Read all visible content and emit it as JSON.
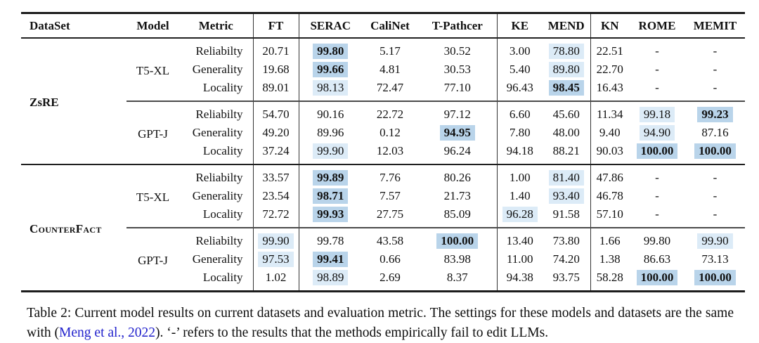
{
  "table": {
    "columns": [
      "DataSet",
      "Model",
      "Metric",
      "FT",
      "SERAC",
      "CaliNet",
      "T-Pathcer",
      "KE",
      "MEND",
      "KN",
      "ROME",
      "MEMIT"
    ],
    "highlight_colors": {
      "best": "#b9d4ea",
      "good": "#dcebf7"
    },
    "groups": [
      {
        "dataset": "ZsRE",
        "small_caps": false,
        "blocks": [
          {
            "model": "T5-XL",
            "rows": [
              {
                "metric": "Reliabilty",
                "cells": [
                  {
                    "v": "20.71"
                  },
                  {
                    "v": "99.80",
                    "hl": "best"
                  },
                  {
                    "v": "5.17"
                  },
                  {
                    "v": "30.52"
                  },
                  {
                    "v": "3.00"
                  },
                  {
                    "v": "78.80",
                    "hl": "good"
                  },
                  {
                    "v": "22.51"
                  },
                  {
                    "v": "-"
                  },
                  {
                    "v": "-"
                  }
                ]
              },
              {
                "metric": "Generality",
                "cells": [
                  {
                    "v": "19.68"
                  },
                  {
                    "v": "99.66",
                    "hl": "best"
                  },
                  {
                    "v": "4.81"
                  },
                  {
                    "v": "30.53"
                  },
                  {
                    "v": "5.40"
                  },
                  {
                    "v": "89.80",
                    "hl": "good"
                  },
                  {
                    "v": "22.70"
                  },
                  {
                    "v": "-"
                  },
                  {
                    "v": "-"
                  }
                ]
              },
              {
                "metric": "Locality",
                "cells": [
                  {
                    "v": "89.01"
                  },
                  {
                    "v": "98.13",
                    "hl": "good"
                  },
                  {
                    "v": "72.47"
                  },
                  {
                    "v": "77.10"
                  },
                  {
                    "v": "96.43"
                  },
                  {
                    "v": "98.45",
                    "hl": "best"
                  },
                  {
                    "v": "16.43"
                  },
                  {
                    "v": "-"
                  },
                  {
                    "v": "-"
                  }
                ]
              }
            ]
          },
          {
            "model": "GPT-J",
            "rows": [
              {
                "metric": "Reliabilty",
                "cells": [
                  {
                    "v": "54.70"
                  },
                  {
                    "v": "90.16"
                  },
                  {
                    "v": "22.72"
                  },
                  {
                    "v": "97.12"
                  },
                  {
                    "v": "6.60"
                  },
                  {
                    "v": "45.60"
                  },
                  {
                    "v": "11.34"
                  },
                  {
                    "v": "99.18",
                    "hl": "good"
                  },
                  {
                    "v": "99.23",
                    "hl": "best"
                  }
                ]
              },
              {
                "metric": "Generality",
                "cells": [
                  {
                    "v": "49.20"
                  },
                  {
                    "v": "89.96"
                  },
                  {
                    "v": "0.12"
                  },
                  {
                    "v": "94.95",
                    "hl": "best"
                  },
                  {
                    "v": "7.80"
                  },
                  {
                    "v": "48.00"
                  },
                  {
                    "v": "9.40"
                  },
                  {
                    "v": "94.90",
                    "hl": "good"
                  },
                  {
                    "v": "87.16"
                  }
                ]
              },
              {
                "metric": "Locality",
                "cells": [
                  {
                    "v": "37.24"
                  },
                  {
                    "v": "99.90",
                    "hl": "good"
                  },
                  {
                    "v": "12.03"
                  },
                  {
                    "v": "96.24"
                  },
                  {
                    "v": "94.18"
                  },
                  {
                    "v": "88.21"
                  },
                  {
                    "v": "90.03"
                  },
                  {
                    "v": "100.00",
                    "hl": "best"
                  },
                  {
                    "v": "100.00",
                    "hl": "best"
                  }
                ]
              }
            ]
          }
        ]
      },
      {
        "dataset": "CounterFact",
        "small_caps": true,
        "blocks": [
          {
            "model": "T5-XL",
            "rows": [
              {
                "metric": "Reliabilty",
                "cells": [
                  {
                    "v": "33.57"
                  },
                  {
                    "v": "99.89",
                    "hl": "best"
                  },
                  {
                    "v": "7.76"
                  },
                  {
                    "v": "80.26"
                  },
                  {
                    "v": "1.00"
                  },
                  {
                    "v": "81.40",
                    "hl": "good"
                  },
                  {
                    "v": "47.86"
                  },
                  {
                    "v": "-"
                  },
                  {
                    "v": "-"
                  }
                ]
              },
              {
                "metric": "Generality",
                "cells": [
                  {
                    "v": "23.54"
                  },
                  {
                    "v": "98.71",
                    "hl": "best"
                  },
                  {
                    "v": "7.57"
                  },
                  {
                    "v": "21.73"
                  },
                  {
                    "v": "1.40"
                  },
                  {
                    "v": "93.40",
                    "hl": "good"
                  },
                  {
                    "v": "46.78"
                  },
                  {
                    "v": "-"
                  },
                  {
                    "v": "-"
                  }
                ]
              },
              {
                "metric": "Locality",
                "cells": [
                  {
                    "v": "72.72"
                  },
                  {
                    "v": "99.93",
                    "hl": "best"
                  },
                  {
                    "v": "27.75"
                  },
                  {
                    "v": "85.09"
                  },
                  {
                    "v": "96.28",
                    "hl": "good"
                  },
                  {
                    "v": "91.58"
                  },
                  {
                    "v": "57.10"
                  },
                  {
                    "v": "-"
                  },
                  {
                    "v": "-"
                  }
                ]
              }
            ]
          },
          {
            "model": "GPT-J",
            "rows": [
              {
                "metric": "Reliabilty",
                "cells": [
                  {
                    "v": "99.90",
                    "hl": "good"
                  },
                  {
                    "v": "99.78"
                  },
                  {
                    "v": "43.58"
                  },
                  {
                    "v": "100.00",
                    "hl": "best"
                  },
                  {
                    "v": "13.40"
                  },
                  {
                    "v": "73.80"
                  },
                  {
                    "v": "1.66"
                  },
                  {
                    "v": "99.80"
                  },
                  {
                    "v": "99.90",
                    "hl": "good"
                  }
                ]
              },
              {
                "metric": "Generality",
                "cells": [
                  {
                    "v": "97.53",
                    "hl": "good"
                  },
                  {
                    "v": "99.41",
                    "hl": "best"
                  },
                  {
                    "v": "0.66"
                  },
                  {
                    "v": "83.98"
                  },
                  {
                    "v": "11.00"
                  },
                  {
                    "v": "74.20"
                  },
                  {
                    "v": "1.38"
                  },
                  {
                    "v": "86.63"
                  },
                  {
                    "v": "73.13"
                  }
                ]
              },
              {
                "metric": "Locality",
                "cells": [
                  {
                    "v": "1.02"
                  },
                  {
                    "v": "98.89",
                    "hl": "good"
                  },
                  {
                    "v": "2.69"
                  },
                  {
                    "v": "8.37"
                  },
                  {
                    "v": "94.38"
                  },
                  {
                    "v": "93.75"
                  },
                  {
                    "v": "58.28"
                  },
                  {
                    "v": "100.00",
                    "hl": "best"
                  },
                  {
                    "v": "100.00",
                    "hl": "best"
                  }
                ]
              }
            ]
          }
        ]
      }
    ]
  },
  "caption": {
    "text_before": "Table 2: Current model results on current datasets and evaluation metric. The settings for these models and datasets are the same with (",
    "citation": "Meng et al., 2022",
    "text_after": "). ‘-’ refers to the results that the methods empirically fail to edit LLMs."
  }
}
